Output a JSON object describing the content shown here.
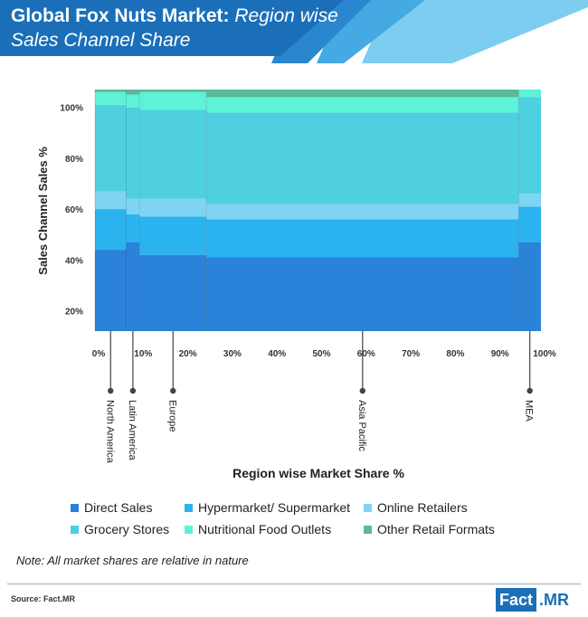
{
  "header": {
    "title_bold": "Global Fox Nuts Market:",
    "title_italic": "Region wise",
    "title_line2": "Sales Channel Share"
  },
  "colors": {
    "header_bg": "#1b6fb8",
    "header_stripe_1": "#2a86cf",
    "header_stripe_2": "#45a9e3",
    "header_stripe_3": "#7dcdf0",
    "direct_sales": "#2b82d9",
    "hypermarket": "#2ab3ee",
    "online": "#7fd4f4",
    "grocery": "#4fd0e0",
    "nutritional": "#5ef2d6",
    "other": "#5bb89a"
  },
  "chart_data": {
    "type": "marimekko",
    "ylabel": "Sales Channel Sales %",
    "xlabel": "Region wise Market Share %",
    "ylim": [
      0,
      100
    ],
    "xlim": [
      0,
      100
    ],
    "y_ticks": [
      "20%",
      "40%",
      "60%",
      "80%",
      "100%"
    ],
    "x_ticks": [
      "0%",
      "10%",
      "20%",
      "30%",
      "40%",
      "50%",
      "60%",
      "70%",
      "80%",
      "90%",
      "100%"
    ],
    "segment_order": [
      "Direct Sales",
      "Hypermarket/ Supermarket",
      "Online Retailers",
      "Grocery Stores",
      "Nutritional Food Outlets",
      "Other Retail Formats"
    ],
    "regions": [
      {
        "name": "North America",
        "x_start": 0,
        "x_end": 7,
        "values": [
          44,
          16,
          7,
          34,
          5,
          3
        ]
      },
      {
        "name": "Latin America",
        "x_start": 7,
        "x_end": 10,
        "values": [
          47,
          11,
          6,
          36,
          5,
          4
        ]
      },
      {
        "name": "Europe",
        "x_start": 10,
        "x_end": 25,
        "values": [
          42,
          15,
          7,
          35,
          7,
          3
        ]
      },
      {
        "name": "Asia Pacific",
        "x_start": 25,
        "x_end": 95,
        "values": [
          41,
          15,
          6,
          36,
          6,
          4
        ]
      },
      {
        "name": "MEA",
        "x_start": 95,
        "x_end": 100,
        "values": [
          47,
          14,
          5,
          38,
          3,
          2
        ]
      }
    ]
  },
  "legend": {
    "items": [
      {
        "label": "Direct Sales",
        "color": "#2b82d9"
      },
      {
        "label": "Hypermarket/ Supermarket",
        "color": "#2ab3ee"
      },
      {
        "label": "Online Retailers",
        "color": "#7fd4f4"
      },
      {
        "label": "Grocery Stores",
        "color": "#4fd0e0"
      },
      {
        "label": "Nutritional Food Outlets",
        "color": "#5ef2d6"
      },
      {
        "label": "Other Retail Formats",
        "color": "#5bb89a"
      }
    ]
  },
  "note": "Note: All market shares are relative in nature",
  "source": "Source: Fact.MR",
  "logo": {
    "part1": "Fact",
    "part2": ".MR"
  }
}
